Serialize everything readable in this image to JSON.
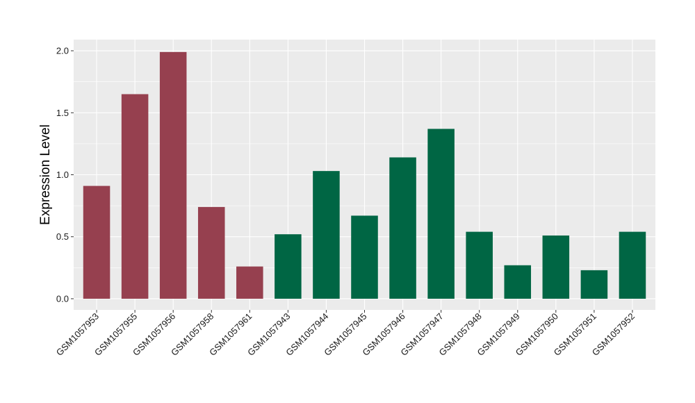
{
  "chart_data": {
    "type": "bar",
    "title": "",
    "xlabel": "",
    "ylabel": "Expression Level",
    "ylim": [
      -0.09,
      2.09
    ],
    "yticks": [
      0.0,
      0.5,
      1.0,
      1.5,
      2.0
    ],
    "ytick_labels": [
      "0.0",
      "0.5",
      "1.0",
      "1.5",
      "2.0"
    ],
    "grid": true,
    "legend": "none",
    "colors": {
      "panel": "#ebebeb",
      "grid": "#ffffff",
      "group_a": "#96404f",
      "group_b": "#006644"
    },
    "categories": [
      "GSM1057953",
      "GSM1057955",
      "GSM1057956",
      "GSM1057958",
      "GSM1057961",
      "GSM1057943",
      "GSM1057944",
      "GSM1057945",
      "GSM1057946",
      "GSM1057947",
      "GSM1057948",
      "GSM1057949",
      "GSM1057950",
      "GSM1057951",
      "GSM1057952"
    ],
    "values": [
      0.91,
      1.65,
      1.99,
      0.74,
      0.26,
      0.52,
      1.03,
      0.67,
      1.14,
      1.37,
      0.54,
      0.27,
      0.51,
      0.23,
      0.54
    ],
    "bar_groups": [
      "a",
      "a",
      "a",
      "a",
      "a",
      "b",
      "b",
      "b",
      "b",
      "b",
      "b",
      "b",
      "b",
      "b",
      "b"
    ]
  }
}
